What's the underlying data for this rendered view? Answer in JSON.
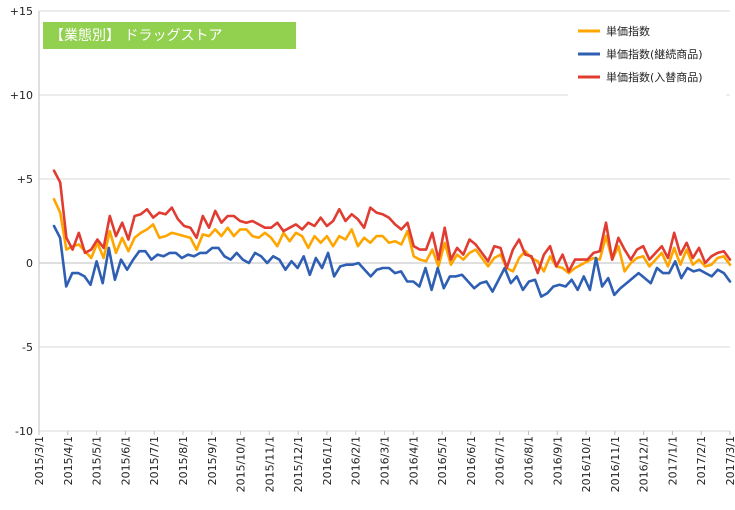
{
  "chart_data": {
    "type": "line",
    "title": "【業態別】 ドラッグストア",
    "title_bg_color": "#92d050",
    "title_text_color": "#ffffff",
    "ylim": [
      -10,
      15
    ],
    "yticks": [
      -10,
      -5,
      0,
      5,
      10,
      15
    ],
    "ytick_labels": [
      "-10",
      "-5",
      "0",
      "+5",
      "+10",
      "+15"
    ],
    "xtick_labels": [
      "2015/3/1",
      "2015/4/1",
      "2015/5/1",
      "2015/6/1",
      "2015/7/1",
      "2015/8/1",
      "2015/9/1",
      "2015/10/1",
      "2015/11/1",
      "2015/12/1",
      "2016/1/1",
      "2016/2/1",
      "2016/3/1",
      "2016/4/1",
      "2016/5/1",
      "2016/6/1",
      "2016/7/1",
      "2016/8/1",
      "2016/9/1",
      "2016/10/1",
      "2016/11/1",
      "2016/12/1",
      "2017/1/1",
      "2017/2/1",
      "2017/3/1"
    ],
    "grid": true,
    "legend_position": "top-right",
    "series": [
      {
        "name": "単価指数",
        "color": "#ffa500",
        "values": [
          3.8,
          3.0,
          0.8,
          1.0,
          1.1,
          0.7,
          0.3,
          1.2,
          0.3,
          1.9,
          0.6,
          1.5,
          0.7,
          1.5,
          1.8,
          2.0,
          2.3,
          1.5,
          1.6,
          1.8,
          1.7,
          1.6,
          1.5,
          0.8,
          1.7,
          1.6,
          2.0,
          1.6,
          2.1,
          1.6,
          2.0,
          2.0,
          1.6,
          1.5,
          1.8,
          1.5,
          1.0,
          1.8,
          1.3,
          1.8,
          1.6,
          0.9,
          1.6,
          1.2,
          1.6,
          1.0,
          1.6,
          1.4,
          2.0,
          1.0,
          1.5,
          1.2,
          1.6,
          1.6,
          1.2,
          1.3,
          1.1,
          1.9,
          0.4,
          0.2,
          0.1,
          0.8,
          -0.2,
          1.2,
          -0.1,
          0.5,
          0.2,
          0.6,
          0.8,
          0.3,
          -0.2,
          0.3,
          0.5,
          -0.3,
          -0.5,
          0.3,
          0.7,
          0.3,
          0.1,
          -0.5,
          0.4,
          -0.2,
          -0.3,
          -0.6,
          -0.3,
          -0.1,
          0.1,
          0.3,
          0.2,
          1.6,
          0.2,
          1.0,
          -0.5,
          0.0,
          0.3,
          0.4,
          -0.2,
          0.2,
          0.6,
          -0.2,
          0.9,
          -0.1,
          0.8,
          -0.1,
          0.2,
          -0.2,
          -0.1,
          0.3,
          0.4,
          -0.1
        ]
      },
      {
        "name": "単価指数(継続商品)",
        "color": "#2e5fb3",
        "values": [
          2.2,
          1.5,
          -1.4,
          -0.6,
          -0.6,
          -0.8,
          -1.3,
          0.1,
          -1.2,
          0.9,
          -1.0,
          0.2,
          -0.4,
          0.2,
          0.7,
          0.7,
          0.2,
          0.5,
          0.4,
          0.6,
          0.6,
          0.3,
          0.5,
          0.4,
          0.6,
          0.6,
          0.9,
          0.9,
          0.4,
          0.2,
          0.6,
          0.2,
          0.0,
          0.6,
          0.4,
          0.0,
          0.4,
          0.2,
          -0.4,
          0.1,
          -0.3,
          0.4,
          -0.7,
          0.3,
          -0.3,
          0.6,
          -0.8,
          -0.2,
          -0.1,
          -0.1,
          0.0,
          -0.4,
          -0.8,
          -0.4,
          -0.3,
          -0.3,
          -0.6,
          -0.5,
          -1.1,
          -1.1,
          -1.4,
          -0.3,
          -1.6,
          -0.3,
          -1.5,
          -0.8,
          -0.8,
          -0.7,
          -1.1,
          -1.5,
          -1.2,
          -1.1,
          -1.7,
          -1.0,
          -0.3,
          -1.2,
          -0.8,
          -1.6,
          -1.1,
          -1.0,
          -2.0,
          -1.8,
          -1.4,
          -1.3,
          -1.4,
          -1.0,
          -1.6,
          -0.8,
          -1.6,
          0.3,
          -1.4,
          -0.9,
          -1.9,
          -1.5,
          -1.2,
          -0.9,
          -0.6,
          -0.9,
          -1.2,
          -0.3,
          -0.6,
          -0.6,
          0.1,
          -0.9,
          -0.3,
          -0.5,
          -0.4,
          -0.6,
          -0.8,
          -0.4,
          -0.6,
          -1.1
        ]
      },
      {
        "name": "単価指数(入替商品)",
        "color": "#e03c31",
        "values": [
          5.5,
          4.8,
          1.5,
          0.8,
          1.8,
          0.6,
          0.8,
          1.4,
          0.9,
          2.8,
          1.6,
          2.4,
          1.4,
          2.8,
          2.9,
          3.2,
          2.7,
          3.0,
          2.9,
          3.3,
          2.6,
          2.2,
          2.1,
          1.5,
          2.8,
          2.1,
          3.1,
          2.4,
          2.8,
          2.8,
          2.5,
          2.4,
          2.5,
          2.3,
          2.1,
          2.1,
          2.4,
          1.9,
          2.1,
          2.3,
          2.0,
          2.4,
          2.2,
          2.7,
          2.2,
          2.5,
          3.2,
          2.5,
          2.9,
          2.6,
          2.1,
          3.3,
          3.0,
          2.9,
          2.7,
          2.3,
          2.0,
          2.4,
          1.0,
          0.8,
          0.8,
          1.8,
          0.2,
          2.1,
          0.2,
          0.9,
          0.5,
          1.4,
          1.1,
          0.6,
          0.1,
          1.0,
          0.9,
          -0.3,
          0.8,
          1.4,
          0.5,
          0.4,
          -0.6,
          0.5,
          1.0,
          -0.2,
          0.5,
          -0.5,
          0.2,
          0.2,
          0.2,
          0.6,
          0.7,
          2.4,
          0.2,
          1.5,
          0.8,
          0.2,
          0.8,
          1.0,
          0.2,
          0.6,
          1.0,
          0.3,
          1.8,
          0.5,
          1.2,
          0.3,
          0.9,
          0.0,
          0.4,
          0.6,
          0.7,
          0.2
        ]
      }
    ]
  }
}
